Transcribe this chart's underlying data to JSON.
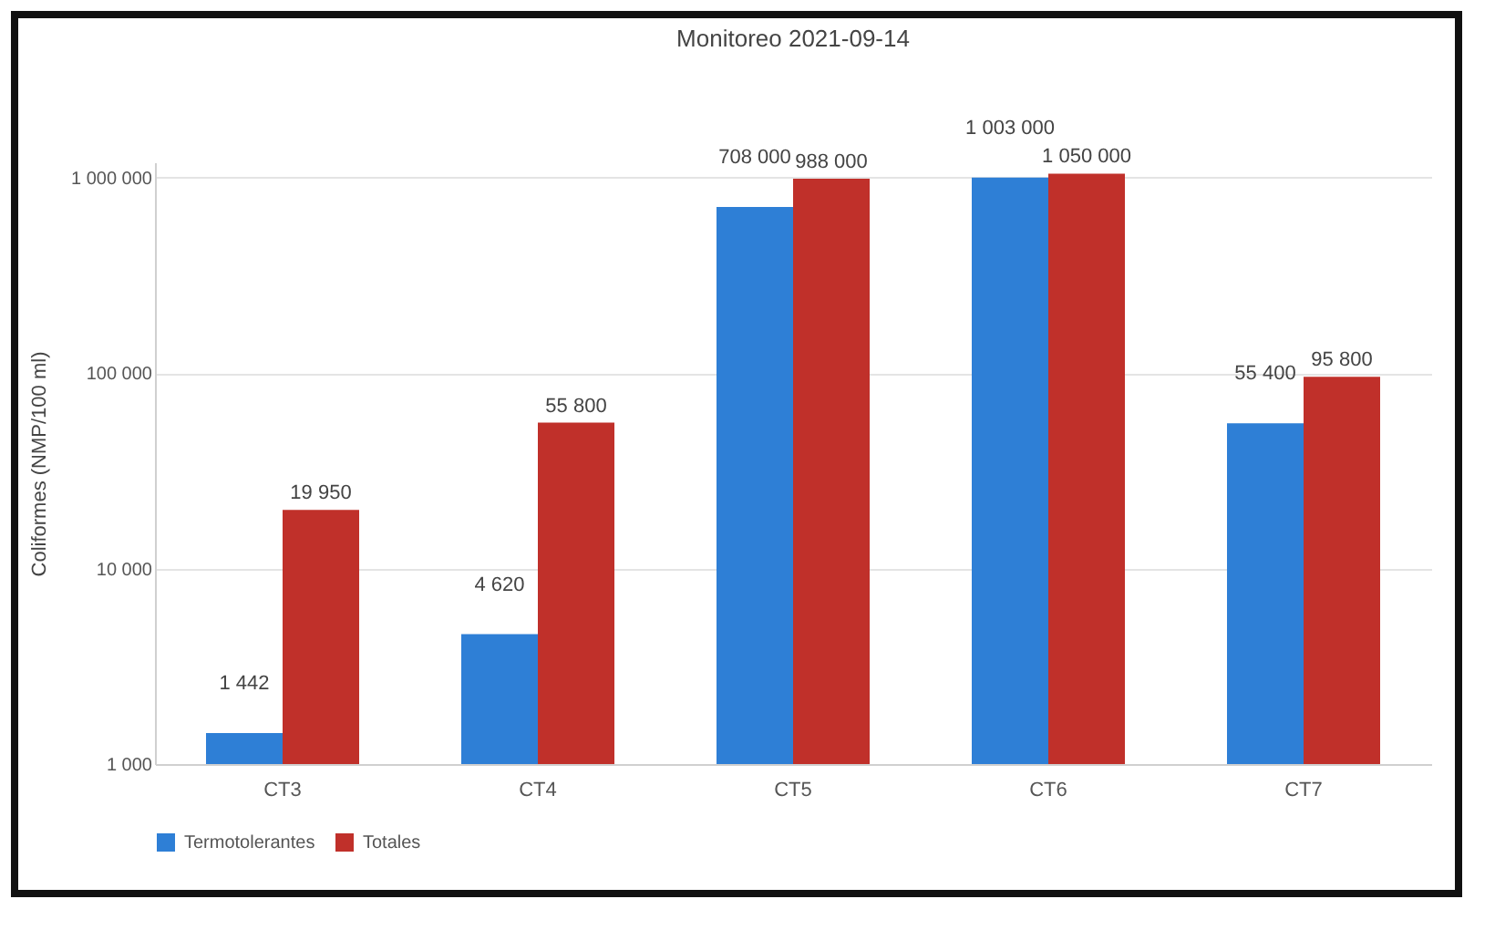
{
  "chart_data": {
    "type": "bar",
    "title": "Monitoreo 2021-09-14",
    "ylabel": "Coliformes (NMP/100 ml)",
    "categories": [
      "CT3",
      "CT4",
      "CT5",
      "CT6",
      "CT7"
    ],
    "series": [
      {
        "name": "Termotolerantes",
        "color": "#2e7fd6",
        "values": [
          1442,
          4620,
          708000,
          1003000,
          55400
        ],
        "value_labels": [
          "1 442",
          "4 620",
          "708 000",
          "1 003 000",
          "55 400"
        ]
      },
      {
        "name": "Totales",
        "color": "#c0302a",
        "values": [
          19950,
          55800,
          988000,
          1050000,
          95800
        ],
        "value_labels": [
          "19 950",
          "55 800",
          "988 000",
          "1 050 000",
          "95 800"
        ]
      }
    ],
    "log": "y",
    "ylim": [
      1000,
      1200000
    ],
    "yticks": [
      {
        "value": 1000,
        "label": "1 000"
      },
      {
        "value": 10000,
        "label": "10 000"
      },
      {
        "value": 100000,
        "label": "100 000"
      },
      {
        "value": 1000000,
        "label": "1 000 000"
      }
    ],
    "grid": "y",
    "legend": "bottom"
  }
}
